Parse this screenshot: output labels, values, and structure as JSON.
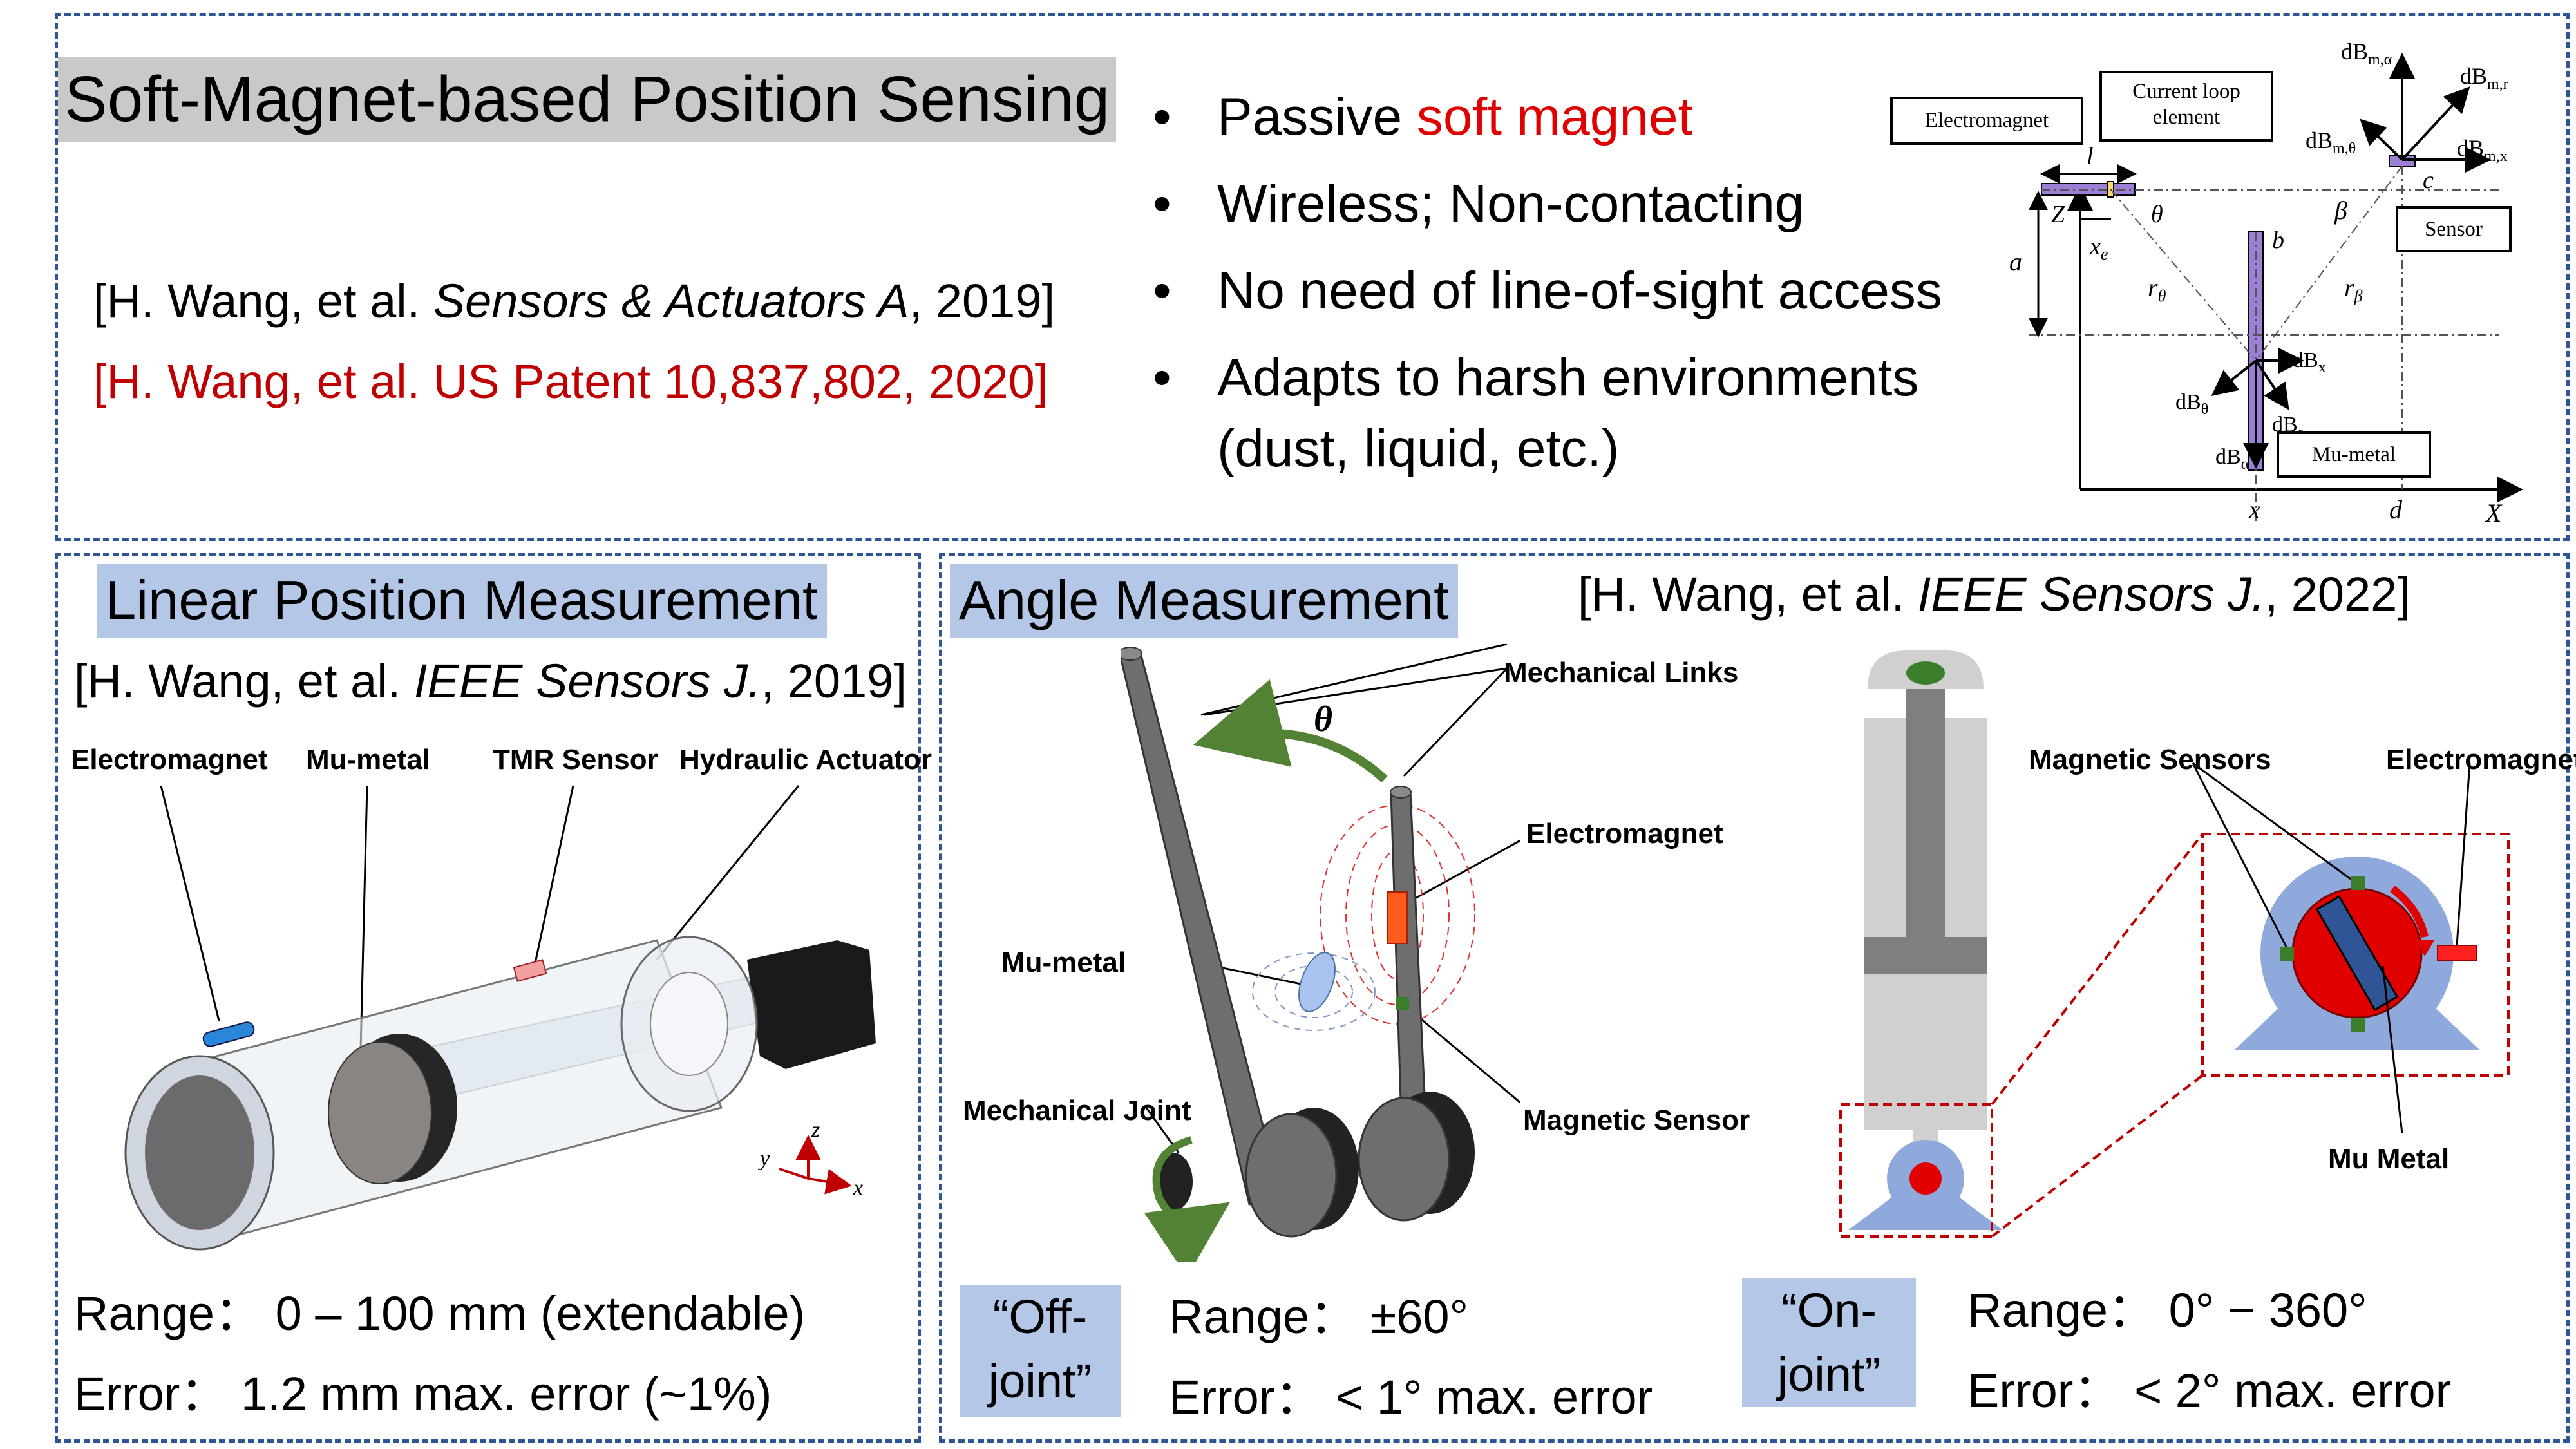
{
  "top": {
    "title": "Soft-Magnet-based Position Sensing",
    "ref1": {
      "pre": "[H. Wang, et al. ",
      "journal": "Sensors & Actuators A",
      "post": ", 2019]"
    },
    "ref2": "[H. Wang, et al. US Patent 10,837,802, 2020]",
    "bullets": {
      "b1_pre": "Passive ",
      "b1_red": "soft magnet",
      "b2": "Wireless; Non-contacting",
      "b3": "No need of line-of-sight access",
      "b4_line1": "Adapts to harsh environments",
      "b4_line2": "(dust, liquid, etc.)"
    },
    "schematic": {
      "electromagnet": "Electromagnet",
      "current_loop_1": "Current loop",
      "current_loop_2": "element",
      "sensor": "Sensor",
      "mu_metal": "Mu-metal",
      "dB_m_alpha": "dB",
      "l": "l",
      "Z": "Z",
      "theta": "θ",
      "a": "a",
      "x_e": "x",
      "r_theta": "r",
      "r_beta": "r",
      "b": "b",
      "beta": "β",
      "c": "c",
      "x": "x",
      "d": "d",
      "X": "X"
    }
  },
  "linear": {
    "title": "Linear Position Measurement",
    "ref": {
      "pre": "[H. Wang, et al. ",
      "journal": "IEEE Sensors J.",
      "post": ", 2019]"
    },
    "labels": {
      "electromagnet": "Electromagnet",
      "mu_metal": "Mu-metal",
      "tmr": "TMR Sensor",
      "hydraulic": "Hydraulic Actuator"
    },
    "axes": {
      "z": "z",
      "y": "y",
      "x": "x"
    },
    "range": "Range：  0 – 100 mm (extendable)",
    "error": "Error：  1.2 mm max. error (~1%)"
  },
  "angle": {
    "title": "Angle Measurement",
    "ref": {
      "pre": "[H. Wang, et al. ",
      "journal": "IEEE Sensors J.",
      "post": ", 2022]"
    },
    "off_labels": {
      "links": "Mechanical Links",
      "theta": "θ",
      "electromagnet": "Electromagnet",
      "mu_metal": "Mu-metal",
      "joint": "Mechanical Joint",
      "sensor": "Magnetic Sensor"
    },
    "on_labels": {
      "sensors": "Magnetic Sensors",
      "electromagnet": "Electromagnet",
      "mu_metal": "Mu Metal"
    },
    "off_tag_1": "“Off-",
    "off_tag_2": "joint”",
    "on_tag_1": "“On-",
    "on_tag_2": "joint”",
    "off_range": "Range：  ±60°",
    "off_error": "Error：  < 1° max. error",
    "on_range": "Range：  0° − 360°",
    "on_error": "Error：  < 2° max. error"
  },
  "colors": {
    "panel_border": "#2F5597",
    "title_gray": "#c9c9c9",
    "title_blue": "#b4c7e7",
    "accent_red": "#c00000"
  }
}
